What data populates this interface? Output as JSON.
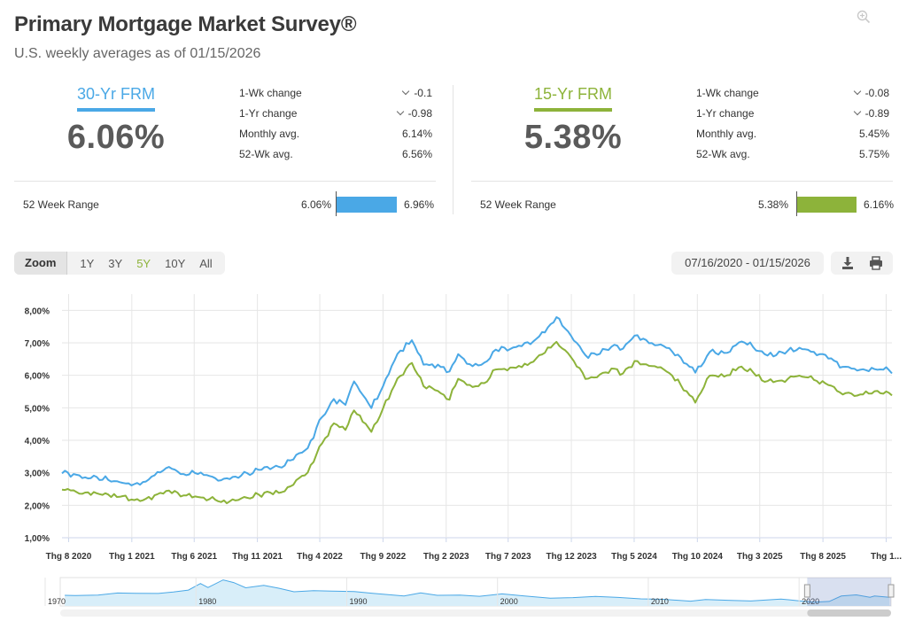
{
  "header": {
    "title": "Primary Mortgage Market Survey®",
    "subtitle": "U.S. weekly averages as of 01/15/2026"
  },
  "rates": [
    {
      "name": "30-Yr FRM",
      "value": "6.06%",
      "color": "#4aa8e6",
      "stats": [
        {
          "label": "1-Wk change",
          "value": "-0.1",
          "chevron": true
        },
        {
          "label": "1-Yr change",
          "value": "-0.98",
          "chevron": true
        },
        {
          "label": "Monthly avg.",
          "value": "6.14%",
          "chevron": false
        },
        {
          "label": "52-Wk avg.",
          "value": "6.56%",
          "chevron": false
        }
      ],
      "range": {
        "label": "52 Week Range",
        "low": "6.06%",
        "high": "6.96%"
      }
    },
    {
      "name": "15-Yr FRM",
      "value": "5.38%",
      "color": "#8db33a",
      "stats": [
        {
          "label": "1-Wk change",
          "value": "-0.08",
          "chevron": true
        },
        {
          "label": "1-Yr change",
          "value": "-0.89",
          "chevron": true
        },
        {
          "label": "Monthly avg.",
          "value": "5.45%",
          "chevron": false
        },
        {
          "label": "52-Wk avg.",
          "value": "5.75%",
          "chevron": false
        }
      ],
      "range": {
        "label": "52 Week Range",
        "low": "5.38%",
        "high": "6.16%"
      }
    }
  ],
  "controls": {
    "zoom_label": "Zoom",
    "zoom_options": [
      "1Y",
      "3Y",
      "5Y",
      "10Y",
      "All"
    ],
    "zoom_active": "5Y",
    "date_range": "07/16/2020 - 01/15/2026",
    "icons": [
      "download-icon",
      "print-icon",
      "zoom-in-icon"
    ]
  },
  "chart_data": {
    "type": "line",
    "x_start": "2020-07-16",
    "x_end": "2026-01-15",
    "xticks": [
      {
        "label": "Thg 8 2020",
        "date": "2020-08-01"
      },
      {
        "label": "Thg 1 2021",
        "date": "2021-01-01"
      },
      {
        "label": "Thg 6 2021",
        "date": "2021-06-01"
      },
      {
        "label": "Thg 11 2021",
        "date": "2021-11-01"
      },
      {
        "label": "Thg 4 2022",
        "date": "2022-04-01"
      },
      {
        "label": "Thg 9 2022",
        "date": "2022-09-01"
      },
      {
        "label": "Thg 2 2023",
        "date": "2023-02-01"
      },
      {
        "label": "Thg 7 2023",
        "date": "2023-07-01"
      },
      {
        "label": "Thg 12 2023",
        "date": "2023-12-01"
      },
      {
        "label": "Thg 5 2024",
        "date": "2024-05-01"
      },
      {
        "label": "Thg 10 2024",
        "date": "2024-10-01"
      },
      {
        "label": "Thg 3 2025",
        "date": "2025-03-01"
      },
      {
        "label": "Thg 8 2025",
        "date": "2025-08-01"
      },
      {
        "label": "Thg 1...",
        "date": "2026-01-01"
      }
    ],
    "yticks": [
      "1,00%",
      "2,00%",
      "3,00%",
      "4,00%",
      "5,00%",
      "6,00%",
      "7,00%",
      "8,00%"
    ],
    "ylim": [
      1,
      8.5
    ],
    "grid": true,
    "series": [
      {
        "name": "30-Yr FRM",
        "color": "#4aa8e6",
        "points": [
          [
            "2020-07-16",
            2.98
          ],
          [
            "2020-08-13",
            2.96
          ],
          [
            "2020-09-10",
            2.86
          ],
          [
            "2020-10-08",
            2.87
          ],
          [
            "2020-11-05",
            2.78
          ],
          [
            "2020-12-03",
            2.71
          ],
          [
            "2021-01-07",
            2.65
          ],
          [
            "2021-02-04",
            2.73
          ],
          [
            "2021-03-04",
            3.02
          ],
          [
            "2021-04-01",
            3.18
          ],
          [
            "2021-05-06",
            2.96
          ],
          [
            "2021-06-03",
            2.99
          ],
          [
            "2021-07-08",
            2.9
          ],
          [
            "2021-08-05",
            2.77
          ],
          [
            "2021-09-02",
            2.87
          ],
          [
            "2021-10-07",
            2.99
          ],
          [
            "2021-11-04",
            3.09
          ],
          [
            "2021-12-02",
            3.11
          ],
          [
            "2022-01-06",
            3.22
          ],
          [
            "2022-02-03",
            3.55
          ],
          [
            "2022-03-03",
            3.76
          ],
          [
            "2022-04-07",
            4.72
          ],
          [
            "2022-05-05",
            5.27
          ],
          [
            "2022-06-02",
            5.09
          ],
          [
            "2022-06-23",
            5.81
          ],
          [
            "2022-08-04",
            4.99
          ],
          [
            "2022-09-01",
            5.66
          ],
          [
            "2022-10-06",
            6.66
          ],
          [
            "2022-11-10",
            7.08
          ],
          [
            "2022-12-08",
            6.33
          ],
          [
            "2023-01-12",
            6.33
          ],
          [
            "2023-02-09",
            6.12
          ],
          [
            "2023-03-02",
            6.65
          ],
          [
            "2023-04-06",
            6.28
          ],
          [
            "2023-05-04",
            6.39
          ],
          [
            "2023-06-01",
            6.79
          ],
          [
            "2023-07-06",
            6.81
          ],
          [
            "2023-08-03",
            6.9
          ],
          [
            "2023-09-07",
            7.12
          ],
          [
            "2023-10-26",
            7.79
          ],
          [
            "2023-11-30",
            7.22
          ],
          [
            "2024-01-04",
            6.62
          ],
          [
            "2024-02-01",
            6.63
          ],
          [
            "2024-03-07",
            6.88
          ],
          [
            "2024-04-04",
            6.82
          ],
          [
            "2024-05-02",
            7.22
          ],
          [
            "2024-06-06",
            6.99
          ],
          [
            "2024-07-04",
            6.95
          ],
          [
            "2024-08-01",
            6.73
          ],
          [
            "2024-09-05",
            6.35
          ],
          [
            "2024-09-26",
            6.08
          ],
          [
            "2024-10-31",
            6.72
          ],
          [
            "2024-12-05",
            6.69
          ],
          [
            "2025-01-16",
            7.04
          ],
          [
            "2025-02-13",
            6.87
          ],
          [
            "2025-03-13",
            6.65
          ],
          [
            "2025-04-10",
            6.62
          ],
          [
            "2025-05-08",
            6.76
          ],
          [
            "2025-06-05",
            6.85
          ],
          [
            "2025-07-10",
            6.72
          ],
          [
            "2025-08-07",
            6.63
          ],
          [
            "2025-09-18",
            6.26
          ],
          [
            "2025-10-30",
            6.17
          ],
          [
            "2025-12-04",
            6.19
          ],
          [
            "2026-01-08",
            6.16
          ],
          [
            "2026-01-15",
            6.06
          ]
        ]
      },
      {
        "name": "15-Yr FRM",
        "color": "#8db33a",
        "points": [
          [
            "2020-07-16",
            2.48
          ],
          [
            "2020-08-13",
            2.46
          ],
          [
            "2020-09-10",
            2.39
          ],
          [
            "2020-10-08",
            2.37
          ],
          [
            "2020-11-05",
            2.33
          ],
          [
            "2020-12-03",
            2.26
          ],
          [
            "2021-01-07",
            2.16
          ],
          [
            "2021-02-04",
            2.2
          ],
          [
            "2021-03-04",
            2.34
          ],
          [
            "2021-04-01",
            2.45
          ],
          [
            "2021-05-06",
            2.3
          ],
          [
            "2021-06-03",
            2.27
          ],
          [
            "2021-07-08",
            2.19
          ],
          [
            "2021-08-05",
            2.1
          ],
          [
            "2021-09-02",
            2.18
          ],
          [
            "2021-10-07",
            2.23
          ],
          [
            "2021-11-04",
            2.33
          ],
          [
            "2021-12-02",
            2.39
          ],
          [
            "2022-01-06",
            2.43
          ],
          [
            "2022-02-03",
            2.77
          ],
          [
            "2022-03-03",
            3.01
          ],
          [
            "2022-04-07",
            3.91
          ],
          [
            "2022-05-05",
            4.52
          ],
          [
            "2022-06-02",
            4.32
          ],
          [
            "2022-06-23",
            4.92
          ],
          [
            "2022-08-04",
            4.26
          ],
          [
            "2022-09-01",
            4.98
          ],
          [
            "2022-10-06",
            5.9
          ],
          [
            "2022-11-10",
            6.38
          ],
          [
            "2022-12-08",
            5.67
          ],
          [
            "2023-01-12",
            5.52
          ],
          [
            "2023-02-09",
            5.25
          ],
          [
            "2023-03-02",
            5.89
          ],
          [
            "2023-04-06",
            5.64
          ],
          [
            "2023-05-04",
            5.76
          ],
          [
            "2023-06-01",
            6.18
          ],
          [
            "2023-07-06",
            6.24
          ],
          [
            "2023-08-03",
            6.25
          ],
          [
            "2023-09-07",
            6.52
          ],
          [
            "2023-10-26",
            7.03
          ],
          [
            "2023-11-30",
            6.56
          ],
          [
            "2024-01-04",
            5.89
          ],
          [
            "2024-02-01",
            5.94
          ],
          [
            "2024-03-07",
            6.21
          ],
          [
            "2024-04-04",
            6.06
          ],
          [
            "2024-05-02",
            6.44
          ],
          [
            "2024-06-06",
            6.29
          ],
          [
            "2024-07-04",
            6.25
          ],
          [
            "2024-08-01",
            5.99
          ],
          [
            "2024-09-05",
            5.51
          ],
          [
            "2024-09-26",
            5.16
          ],
          [
            "2024-10-31",
            5.99
          ],
          [
            "2024-12-05",
            5.96
          ],
          [
            "2025-01-16",
            6.27
          ],
          [
            "2025-02-13",
            6.09
          ],
          [
            "2025-03-13",
            5.8
          ],
          [
            "2025-04-10",
            5.82
          ],
          [
            "2025-05-08",
            5.89
          ],
          [
            "2025-06-05",
            5.99
          ],
          [
            "2025-07-10",
            5.86
          ],
          [
            "2025-08-07",
            5.75
          ],
          [
            "2025-09-18",
            5.41
          ],
          [
            "2025-10-30",
            5.41
          ],
          [
            "2025-12-04",
            5.51
          ],
          [
            "2026-01-08",
            5.46
          ],
          [
            "2026-01-15",
            5.38
          ]
        ]
      }
    ]
  },
  "navigator": {
    "year_labels": [
      "1970",
      "1980",
      "1990",
      "2000",
      "2010",
      "2020"
    ],
    "range_years": [
      1971,
      2026.1
    ],
    "points": [
      [
        1971.3,
        7.5
      ],
      [
        1972.0,
        7.4
      ],
      [
        1973.5,
        7.6
      ],
      [
        1974.8,
        9.1
      ],
      [
        1976.0,
        8.9
      ],
      [
        1977.5,
        8.8
      ],
      [
        1978.5,
        9.8
      ],
      [
        1979.5,
        11.2
      ],
      [
        1980.3,
        15.8
      ],
      [
        1980.8,
        13.0
      ],
      [
        1981.8,
        18.4
      ],
      [
        1982.5,
        16.5
      ],
      [
        1983.3,
        12.8
      ],
      [
        1984.5,
        14.5
      ],
      [
        1985.5,
        12.5
      ],
      [
        1986.5,
        10.0
      ],
      [
        1987.8,
        10.8
      ],
      [
        1989.0,
        10.5
      ],
      [
        1990.5,
        10.1
      ],
      [
        1991.8,
        8.8
      ],
      [
        1993.8,
        7.0
      ],
      [
        1994.9,
        9.2
      ],
      [
        1996.0,
        7.5
      ],
      [
        1997.5,
        7.6
      ],
      [
        1998.8,
        6.8
      ],
      [
        2000.3,
        8.5
      ],
      [
        2001.8,
        7.0
      ],
      [
        2003.5,
        5.5
      ],
      [
        2005.0,
        5.9
      ],
      [
        2006.5,
        6.7
      ],
      [
        2008.0,
        6.0
      ],
      [
        2009.5,
        5.0
      ],
      [
        2011.0,
        4.7
      ],
      [
        2012.8,
        3.4
      ],
      [
        2013.8,
        4.5
      ],
      [
        2015.5,
        3.9
      ],
      [
        2016.8,
        3.5
      ],
      [
        2018.8,
        4.9
      ],
      [
        2020.0,
        3.6
      ],
      [
        2021.0,
        2.7
      ],
      [
        2022.0,
        3.2
      ],
      [
        2022.8,
        7.0
      ],
      [
        2023.8,
        7.8
      ],
      [
        2024.7,
        6.1
      ],
      [
        2025.0,
        7.0
      ],
      [
        2026.0,
        6.06
      ]
    ]
  }
}
